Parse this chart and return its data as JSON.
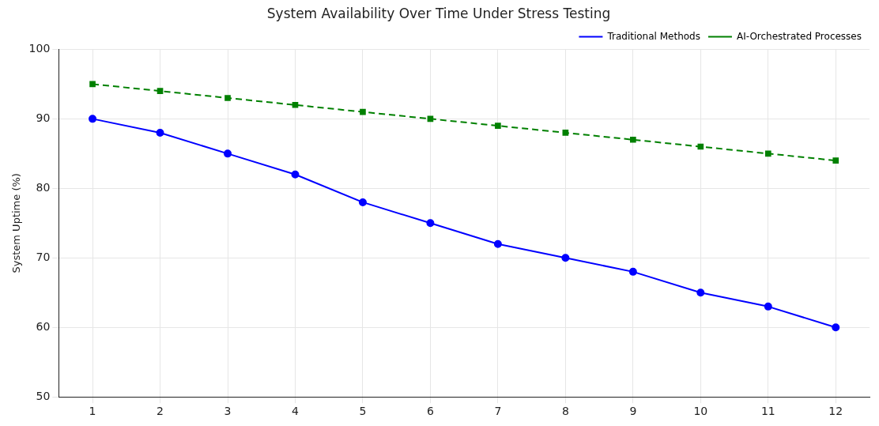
{
  "chart_data": {
    "type": "line",
    "title": "System Availability Over Time Under Stress Testing",
    "ylabel": "System Uptime (%)",
    "x": [
      1,
      2,
      3,
      4,
      5,
      6,
      7,
      8,
      9,
      10,
      11,
      12
    ],
    "series": [
      {
        "name": "Traditional Methods",
        "color": "#0000ff",
        "marker": "circle",
        "line_style": "solid",
        "values": [
          90,
          88,
          85,
          82,
          78,
          75,
          72,
          70,
          68,
          65,
          63,
          60
        ]
      },
      {
        "name": "AI-Orchestrated Processes",
        "color": "#008000",
        "marker": "square",
        "line_style": "dashed",
        "values": [
          95,
          94,
          93,
          92,
          91,
          90,
          89,
          88,
          87,
          86,
          85,
          84
        ]
      }
    ],
    "xlim": [
      0.5,
      12.5
    ],
    "xticks": [
      1,
      2,
      3,
      4,
      5,
      6,
      7,
      8,
      9,
      10,
      11,
      12
    ],
    "ylim": [
      50,
      100
    ],
    "yticks": [
      50,
      60,
      70,
      80,
      90,
      100
    ],
    "grid": true,
    "legend": "top right"
  }
}
